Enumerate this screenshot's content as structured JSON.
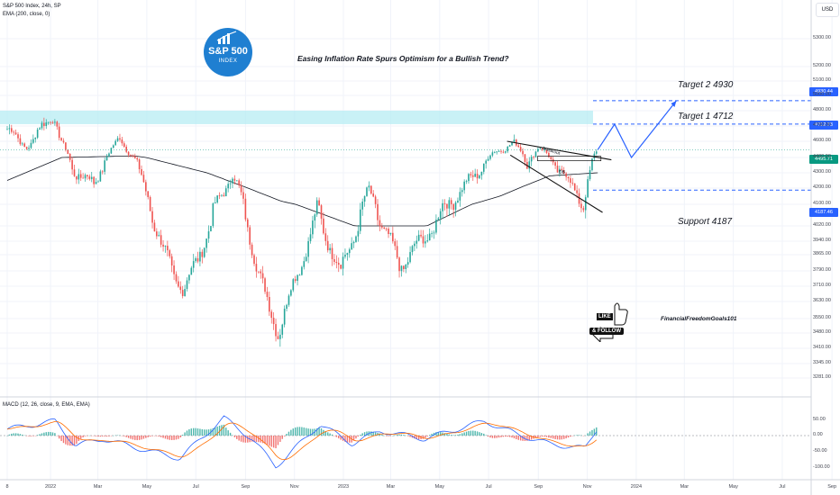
{
  "header": {
    "symbol": "S&P 500 Index, 24h, SP",
    "indicator": "EMA (200, close, 0)",
    "macd": "MACD (12, 26, close, 9, EMA, EMA)",
    "currency": "USD"
  },
  "headline": "Easing Inflation Rate Spurs Optimism for a Bullish Trend?",
  "logo": {
    "line1": "S&P 500",
    "line2": "INDEX"
  },
  "annotations": {
    "target2": "Target 2  4930",
    "target1": "Target 1  4712",
    "support": "Support 4187",
    "breakout": "breakout",
    "db": "DB",
    "like": "LIKE",
    "follow": "& FOLLOW",
    "handle": "FinancialFreedomGoals101"
  },
  "price_labels": {
    "target2": "4930.44",
    "target1": "4712.73",
    "current": "4495.71",
    "support": "4187.46"
  },
  "colors": {
    "up": "#26a69a",
    "down": "#ef5350",
    "ema": "#131722",
    "target_line": "#2962ff",
    "resistance_zone": "#b2ebf2",
    "current_price": "#089981",
    "macd_line": "#2962ff",
    "signal_line": "#ff6d00"
  },
  "chart_data": [
    {
      "type": "candlestick",
      "title": "S&P 500 Index, 24h, SP",
      "y_ticks": [
        "5300.00",
        "5200.00",
        "5100.00",
        "5000.00",
        "4800.00",
        "4700.00",
        "4600.00",
        "4400.00",
        "4300.00",
        "4200.00",
        "4100.00",
        "4020.00",
        "3940.00",
        "3865.00",
        "3790.00",
        "3710.00",
        "3630.00",
        "3550.00",
        "3480.00",
        "3410.00",
        "3345.00",
        "3281.00"
      ],
      "x_ticks": [
        "8",
        "2022",
        "Mar",
        "May",
        "Jul",
        "Sep",
        "Nov",
        "2023",
        "Mar",
        "May",
        "Jul",
        "Sep",
        "Nov",
        "2024",
        "Mar",
        "May",
        "Jul",
        "Sep"
      ],
      "key_levels": {
        "target2": 4930.44,
        "target1": 4712.73,
        "support": 4187.46,
        "current": 4495.71
      },
      "resistance_zone": [
        4712,
        4800
      ],
      "anchors": [
        [
          "2021-11-08",
          4680
        ],
        [
          "2021-12-03",
          4540
        ],
        [
          "2022-01-03",
          4790
        ],
        [
          "2022-01-28",
          4330
        ],
        [
          "2022-02-24",
          4220
        ],
        [
          "2022-03-29",
          4630
        ],
        [
          "2022-05-20",
          3900
        ],
        [
          "2022-06-16",
          3680
        ],
        [
          "2022-08-16",
          4300
        ],
        [
          "2022-09-30",
          3590
        ],
        [
          "2022-10-12",
          3490
        ],
        [
          "2022-11-30",
          4080
        ],
        [
          "2022-12-28",
          3780
        ],
        [
          "2023-02-02",
          4180
        ],
        [
          "2023-03-13",
          3810
        ],
        [
          "2023-05-31",
          4200
        ],
        [
          "2023-07-31",
          4590
        ],
        [
          "2023-08-18",
          4370
        ],
        [
          "2023-09-01",
          4510
        ],
        [
          "2023-10-27",
          4110
        ],
        [
          "2023-11-14",
          4495
        ]
      ],
      "ema200_anchors": [
        [
          "2021-11-08",
          4250
        ],
        [
          "2022-01-15",
          4400
        ],
        [
          "2022-04-15",
          4420
        ],
        [
          "2022-07-15",
          4300
        ],
        [
          "2022-10-15",
          4120
        ],
        [
          "2023-01-15",
          4020
        ],
        [
          "2023-04-15",
          4020
        ],
        [
          "2023-07-15",
          4150
        ],
        [
          "2023-09-15",
          4280
        ],
        [
          "2023-11-14",
          4300
        ]
      ],
      "projection": [
        [
          "2023-11-14",
          4495
        ],
        [
          "2023-12-05",
          4712
        ],
        [
          "2023-12-26",
          4400
        ],
        [
          "2024-02-20",
          4930
        ]
      ]
    },
    {
      "type": "macd",
      "title": "MACD (12, 26, close, 9, EMA, EMA)",
      "y_ticks": [
        "50.00",
        "0.00",
        "-50.00",
        "-100.00"
      ],
      "ylim": [
        -120,
        75
      ]
    }
  ]
}
